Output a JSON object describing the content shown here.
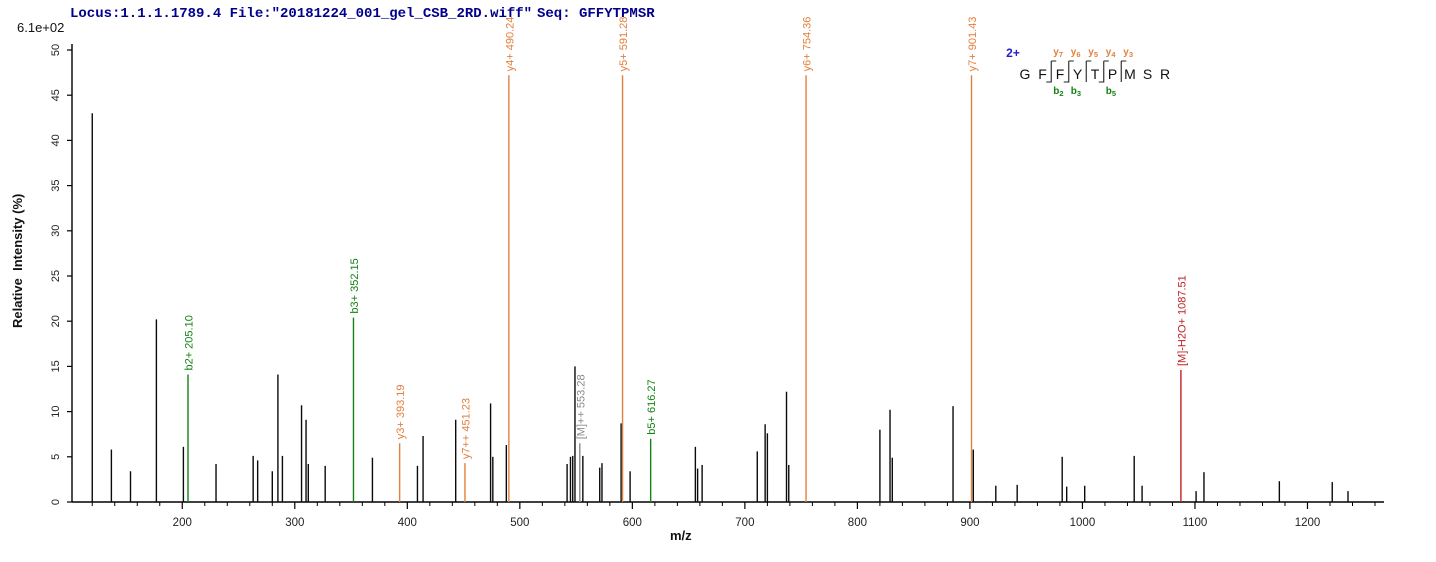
{
  "header": {
    "locus_file": "Locus:1.1.1.1789.4 File:\"20181224_001_gel_CSB_2RD.wiff\"",
    "sequence": "Seq: GFFYTPMSR"
  },
  "intensity_scale_note": "6.1e+02",
  "peptide_panel": {
    "charge": "2+",
    "residues": [
      "G",
      "F",
      "F",
      "Y",
      "T",
      "P",
      "M",
      "S",
      "R"
    ],
    "fragments": [
      {
        "after": 2,
        "y": "y7",
        "b": "b2"
      },
      {
        "after": 3,
        "y": "y6",
        "b": "b3"
      },
      {
        "after": 4,
        "y": "y5",
        "b": null
      },
      {
        "after": 5,
        "y": "y4",
        "b": "b5"
      },
      {
        "after": 6,
        "y": "y3",
        "b": null
      }
    ]
  },
  "colors": {
    "y_ion": "#E2803E",
    "b_ion": "#148214",
    "precursor": "#8a8a8a",
    "neutral_loss": "#BF2222",
    "peak": "#0a0a0a",
    "axis": "#000000",
    "header_text": "#00008C",
    "charge_text": "#2020CC",
    "tick_label": "#222222"
  },
  "chart_data": {
    "type": "bar",
    "variant": "centroid-mass-spectrum",
    "title": "",
    "xlabel": "m/z",
    "ylabel": "Relative  Intensity (%)",
    "xlim": [
      102,
      1268
    ],
    "ylim": [
      0,
      50
    ],
    "grid": false,
    "x_major_ticks": [
      200,
      300,
      400,
      500,
      600,
      700,
      800,
      900,
      1000,
      1100,
      1200
    ],
    "x_minor_ticks": {
      "start": 120,
      "end": 1260,
      "step": 20
    },
    "y_ticks": [
      0,
      5,
      10,
      15,
      20,
      25,
      30,
      35,
      40,
      45,
      50
    ],
    "peaks": [
      {
        "mz": 120,
        "pct": 43.0
      },
      {
        "mz": 137,
        "pct": 5.8
      },
      {
        "mz": 154,
        "pct": 3.4
      },
      {
        "mz": 177,
        "pct": 20.2
      },
      {
        "mz": 201,
        "pct": 6.1
      },
      {
        "mz": 230,
        "pct": 4.2
      },
      {
        "mz": 263,
        "pct": 5.1
      },
      {
        "mz": 267,
        "pct": 4.6
      },
      {
        "mz": 280,
        "pct": 3.4
      },
      {
        "mz": 285,
        "pct": 14.1
      },
      {
        "mz": 289,
        "pct": 5.1
      },
      {
        "mz": 306,
        "pct": 10.7
      },
      {
        "mz": 310,
        "pct": 9.1
      },
      {
        "mz": 312,
        "pct": 4.2
      },
      {
        "mz": 327,
        "pct": 4.0
      },
      {
        "mz": 369,
        "pct": 4.9
      },
      {
        "mz": 409,
        "pct": 4.0
      },
      {
        "mz": 414,
        "pct": 7.3
      },
      {
        "mz": 443,
        "pct": 9.1
      },
      {
        "mz": 474,
        "pct": 10.9
      },
      {
        "mz": 476,
        "pct": 5.0
      },
      {
        "mz": 488,
        "pct": 6.3
      },
      {
        "mz": 542,
        "pct": 4.2
      },
      {
        "mz": 545,
        "pct": 5.0
      },
      {
        "mz": 547,
        "pct": 5.1
      },
      {
        "mz": 549,
        "pct": 15.0
      },
      {
        "mz": 556,
        "pct": 5.1
      },
      {
        "mz": 571,
        "pct": 3.8
      },
      {
        "mz": 573,
        "pct": 4.3
      },
      {
        "mz": 590,
        "pct": 8.7
      },
      {
        "mz": 598,
        "pct": 3.4
      },
      {
        "mz": 656,
        "pct": 6.1
      },
      {
        "mz": 658,
        "pct": 3.7
      },
      {
        "mz": 662,
        "pct": 4.1
      },
      {
        "mz": 711,
        "pct": 5.6
      },
      {
        "mz": 718,
        "pct": 8.6
      },
      {
        "mz": 720,
        "pct": 7.6
      },
      {
        "mz": 737,
        "pct": 12.2
      },
      {
        "mz": 739,
        "pct": 4.1
      },
      {
        "mz": 820,
        "pct": 8.0
      },
      {
        "mz": 829,
        "pct": 10.2
      },
      {
        "mz": 831,
        "pct": 4.9
      },
      {
        "mz": 885,
        "pct": 10.6
      },
      {
        "mz": 903,
        "pct": 5.8
      },
      {
        "mz": 923,
        "pct": 1.8
      },
      {
        "mz": 942,
        "pct": 1.9
      },
      {
        "mz": 982,
        "pct": 5.0
      },
      {
        "mz": 986,
        "pct": 1.7
      },
      {
        "mz": 1002,
        "pct": 1.8
      },
      {
        "mz": 1046,
        "pct": 5.1
      },
      {
        "mz": 1053,
        "pct": 1.8
      },
      {
        "mz": 1101,
        "pct": 1.2
      },
      {
        "mz": 1108,
        "pct": 3.3
      },
      {
        "mz": 1175,
        "pct": 2.3
      },
      {
        "mz": 1222,
        "pct": 2.2
      },
      {
        "mz": 1236,
        "pct": 1.2
      }
    ],
    "annotated_peaks": [
      {
        "label": "b2+ 205.10",
        "mz": 205.1,
        "pct": 14.1,
        "type": "b"
      },
      {
        "label": "b3+ 352.15",
        "mz": 352.15,
        "pct": 20.4,
        "type": "b"
      },
      {
        "label": "y3+ 393.19",
        "mz": 393.19,
        "pct": 6.5,
        "type": "y"
      },
      {
        "label": "y7++ 451.23",
        "mz": 451.23,
        "pct": 4.3,
        "type": "y"
      },
      {
        "label": "y4+ 490.24",
        "mz": 490.24,
        "pct": 47.2,
        "type": "y"
      },
      {
        "label": "[M]++ 553.28",
        "mz": 553.28,
        "pct": 6.5,
        "type": "precursor"
      },
      {
        "label": "y5+ 591.28",
        "mz": 591.28,
        "pct": 47.2,
        "type": "y"
      },
      {
        "label": "b5+ 616.27",
        "mz": 616.27,
        "pct": 7.0,
        "type": "b"
      },
      {
        "label": "y6+ 754.36",
        "mz": 754.36,
        "pct": 47.2,
        "type": "y"
      },
      {
        "label": "y7+ 901.43",
        "mz": 901.43,
        "pct": 47.2,
        "type": "y"
      },
      {
        "label": "[M]-H2O+ 1087.51",
        "mz": 1087.51,
        "pct": 14.6,
        "type": "neutral_loss"
      }
    ]
  }
}
